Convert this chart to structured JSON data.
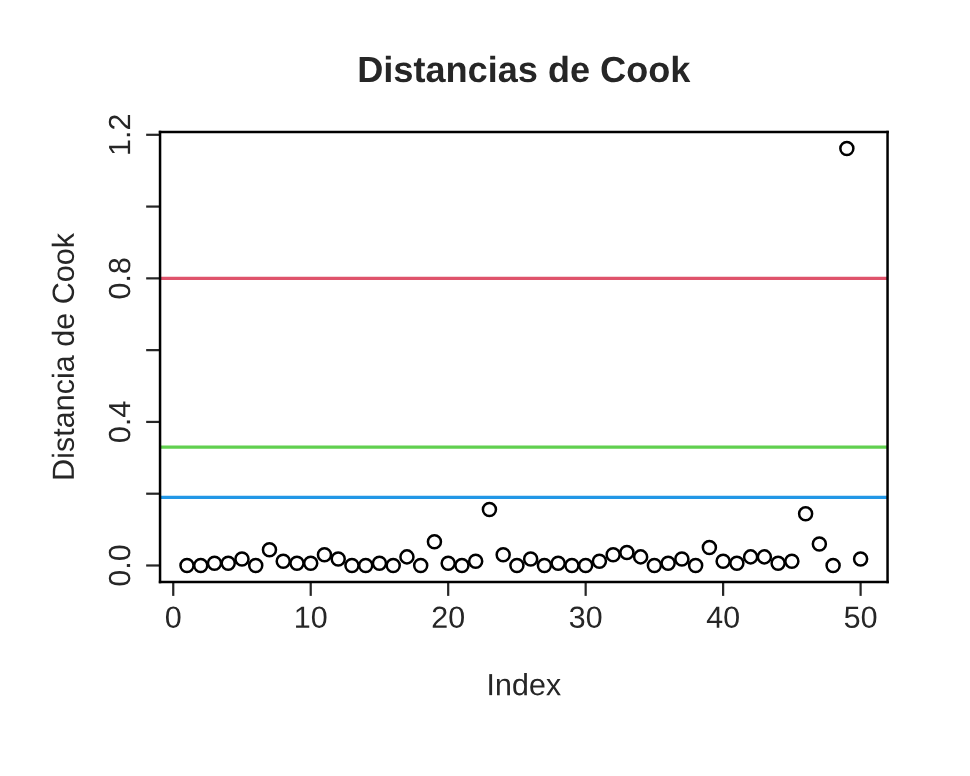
{
  "chart_data": {
    "type": "scatter",
    "title": "Distancias de Cook",
    "xlabel": "Index",
    "ylabel": "Distancia de Cook",
    "x": [
      1,
      2,
      3,
      4,
      5,
      6,
      7,
      8,
      9,
      10,
      11,
      12,
      13,
      14,
      15,
      16,
      17,
      18,
      19,
      20,
      21,
      22,
      23,
      24,
      25,
      26,
      27,
      28,
      29,
      30,
      31,
      32,
      33,
      34,
      35,
      36,
      37,
      38,
      39,
      40,
      41,
      42,
      43,
      44,
      45,
      46,
      47,
      48,
      49,
      50
    ],
    "values": [
      0,
      0,
      0.006,
      0.006,
      0.018,
      0,
      0.044,
      0.012,
      0.006,
      0.006,
      0.03,
      0.018,
      0,
      0,
      0.006,
      0,
      0.024,
      0,
      0.066,
      0.006,
      0,
      0.012,
      0.156,
      0.03,
      0,
      0.018,
      0,
      0.006,
      0,
      0,
      0.012,
      0.03,
      0.036,
      0.024,
      0,
      0.006,
      0.018,
      0,
      0.05,
      0.012,
      0.006,
      0.024,
      0.024,
      0.006,
      0.012,
      0.144,
      0.06,
      0,
      1.162,
      0.018
    ],
    "color": "#000000",
    "marker": "circle",
    "xlim": [
      -0.96,
      51.96
    ],
    "ylim": [
      -0.046,
      1.208
    ],
    "xticks": [
      0,
      10,
      20,
      30,
      40,
      50
    ],
    "yticks": [
      {
        "value": 0,
        "label": "0.0"
      },
      {
        "value": 0.2,
        "label": null
      },
      {
        "value": 0.4,
        "label": "0.4"
      },
      {
        "value": 0.6,
        "label": null
      },
      {
        "value": 0.8,
        "label": "0.8"
      },
      {
        "value": 1.0,
        "label": null
      },
      {
        "value": 1.2,
        "label": "1.2"
      }
    ],
    "ref_lines": [
      {
        "axis": "y",
        "value": 0.8,
        "color": "#df536b"
      },
      {
        "axis": "y",
        "value": 0.33,
        "color": "#61d04f"
      },
      {
        "axis": "y",
        "value": 0.19,
        "color": "#2297e6"
      }
    ],
    "grid": false,
    "legend": false
  }
}
